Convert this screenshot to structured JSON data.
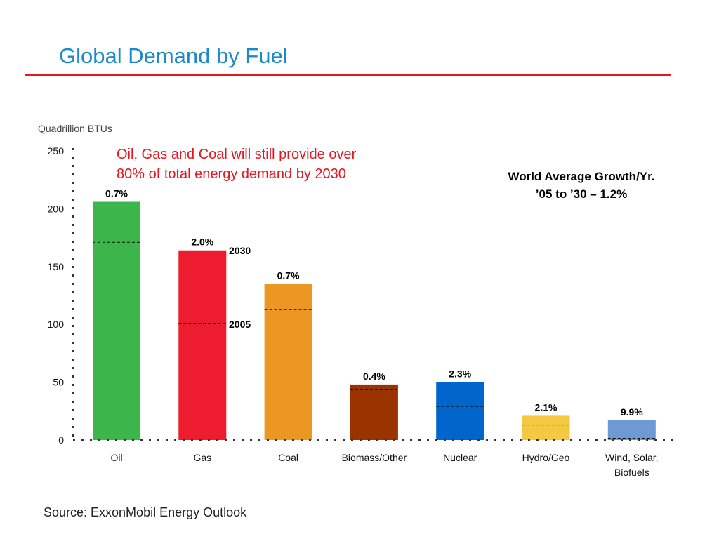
{
  "header": {
    "title": "Global Demand by Fuel",
    "rule_color": "#e8141e"
  },
  "footer": {
    "source": "Source:  ExxonMobil Energy Outlook"
  },
  "callouts": {
    "fossil_share_line1": "Oil, Gas and Coal will still provide over",
    "fossil_share_line2": "80% of total energy demand by 2030",
    "world_growth_line1": "World Average Growth/Yr.",
    "world_growth_line2": "’05 to ’30 – 1.2%"
  },
  "legend_labels": {
    "year_2030": "2030",
    "year_2005": "2005"
  },
  "chart_data": {
    "type": "bar",
    "title": "",
    "ylabel": "Quadrillion BTUs",
    "xlabel": "",
    "ylim": [
      0,
      250
    ],
    "yticks": [
      0,
      50,
      100,
      150,
      200,
      250
    ],
    "categories": [
      "Oil",
      "Gas",
      "Coal",
      "Biomass/Other",
      "Nuclear",
      "Hydro/Geo",
      "Wind, Solar, Biofuels"
    ],
    "category_lines": [
      [
        "Oil"
      ],
      [
        "Gas"
      ],
      [
        "Coal"
      ],
      [
        "Biomass/Other"
      ],
      [
        "Nuclear"
      ],
      [
        "Hydro/Geo"
      ],
      [
        "Wind, Solar,",
        "Biofuels"
      ]
    ],
    "series": [
      {
        "name": "2030",
        "values": [
          206,
          164,
          135,
          48,
          50,
          21,
          17
        ]
      },
      {
        "name": "2005",
        "values": [
          171,
          101,
          113,
          44,
          29,
          13,
          1.5
        ]
      }
    ],
    "growth_labels": [
      "0.7%",
      "2.0%",
      "0.7%",
      "0.4%",
      "2.3%",
      "2.1%",
      "9.9%"
    ],
    "colors": [
      "#3cb54a",
      "#ed1c2e",
      "#ec9623",
      "#993300",
      "#0066cc",
      "#f5c842",
      "#6f99d4"
    ],
    "grid": false
  }
}
